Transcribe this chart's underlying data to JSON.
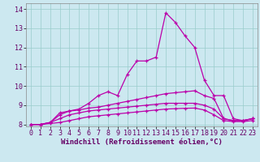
{
  "xlabel": "Windchill (Refroidissement éolien,°C)",
  "background_color": "#cce8f0",
  "grid_color": "#99cccc",
  "line_color": "#bb00aa",
  "xlim": [
    -0.5,
    23.5
  ],
  "ylim": [
    7.9,
    14.3
  ],
  "yticks": [
    8,
    9,
    10,
    11,
    12,
    13,
    14
  ],
  "xticks": [
    0,
    1,
    2,
    3,
    4,
    5,
    6,
    7,
    8,
    9,
    10,
    11,
    12,
    13,
    14,
    15,
    16,
    17,
    18,
    19,
    20,
    21,
    22,
    23
  ],
  "series": [
    [
      8.0,
      8.0,
      8.1,
      8.6,
      8.7,
      8.8,
      9.1,
      9.5,
      9.7,
      9.5,
      10.6,
      11.3,
      11.3,
      11.5,
      13.8,
      13.3,
      12.6,
      12.0,
      10.3,
      9.5,
      9.5,
      8.3,
      8.2,
      8.3
    ],
    [
      8.0,
      8.0,
      8.1,
      8.5,
      8.7,
      8.75,
      8.85,
      8.9,
      9.0,
      9.1,
      9.2,
      9.3,
      9.4,
      9.5,
      9.6,
      9.65,
      9.7,
      9.75,
      9.5,
      9.35,
      8.3,
      8.2,
      8.2,
      8.3
    ],
    [
      8.0,
      8.0,
      8.1,
      8.3,
      8.5,
      8.6,
      8.7,
      8.75,
      8.8,
      8.85,
      8.9,
      8.95,
      9.0,
      9.05,
      9.1,
      9.1,
      9.1,
      9.1,
      9.0,
      8.8,
      8.3,
      8.2,
      8.2,
      8.3
    ],
    [
      8.0,
      8.0,
      8.05,
      8.1,
      8.2,
      8.3,
      8.4,
      8.45,
      8.5,
      8.55,
      8.6,
      8.65,
      8.7,
      8.75,
      8.8,
      8.82,
      8.84,
      8.85,
      8.75,
      8.5,
      8.2,
      8.15,
      8.15,
      8.2
    ]
  ],
  "tick_fontsize": 6,
  "xlabel_fontsize": 6.5
}
